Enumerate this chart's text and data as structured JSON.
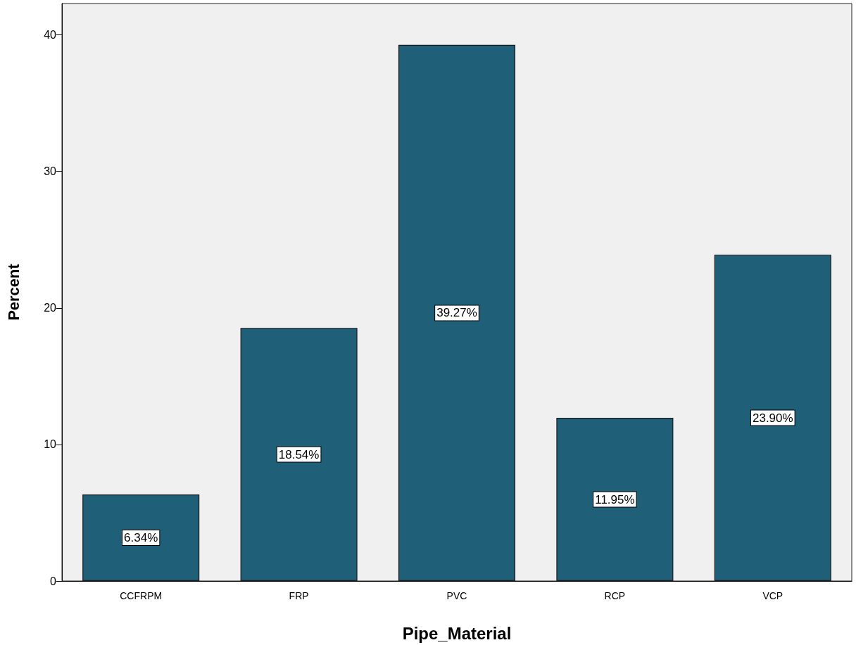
{
  "chart_data": {
    "type": "bar",
    "xlabel": "Pipe_Material",
    "ylabel": "Percent",
    "categories": [
      "CCFRPM",
      "FRP",
      "PVC",
      "RCP",
      "VCP"
    ],
    "values": [
      6.34,
      18.54,
      39.27,
      11.95,
      23.9
    ],
    "value_labels": [
      "6.34%",
      "18.54%",
      "39.27%",
      "11.95%",
      "23.90%"
    ],
    "color": "#1f5f78",
    "ylim": [
      0,
      42.3
    ],
    "yticks": [
      0,
      10,
      20,
      30,
      40
    ],
    "grid": false
  }
}
